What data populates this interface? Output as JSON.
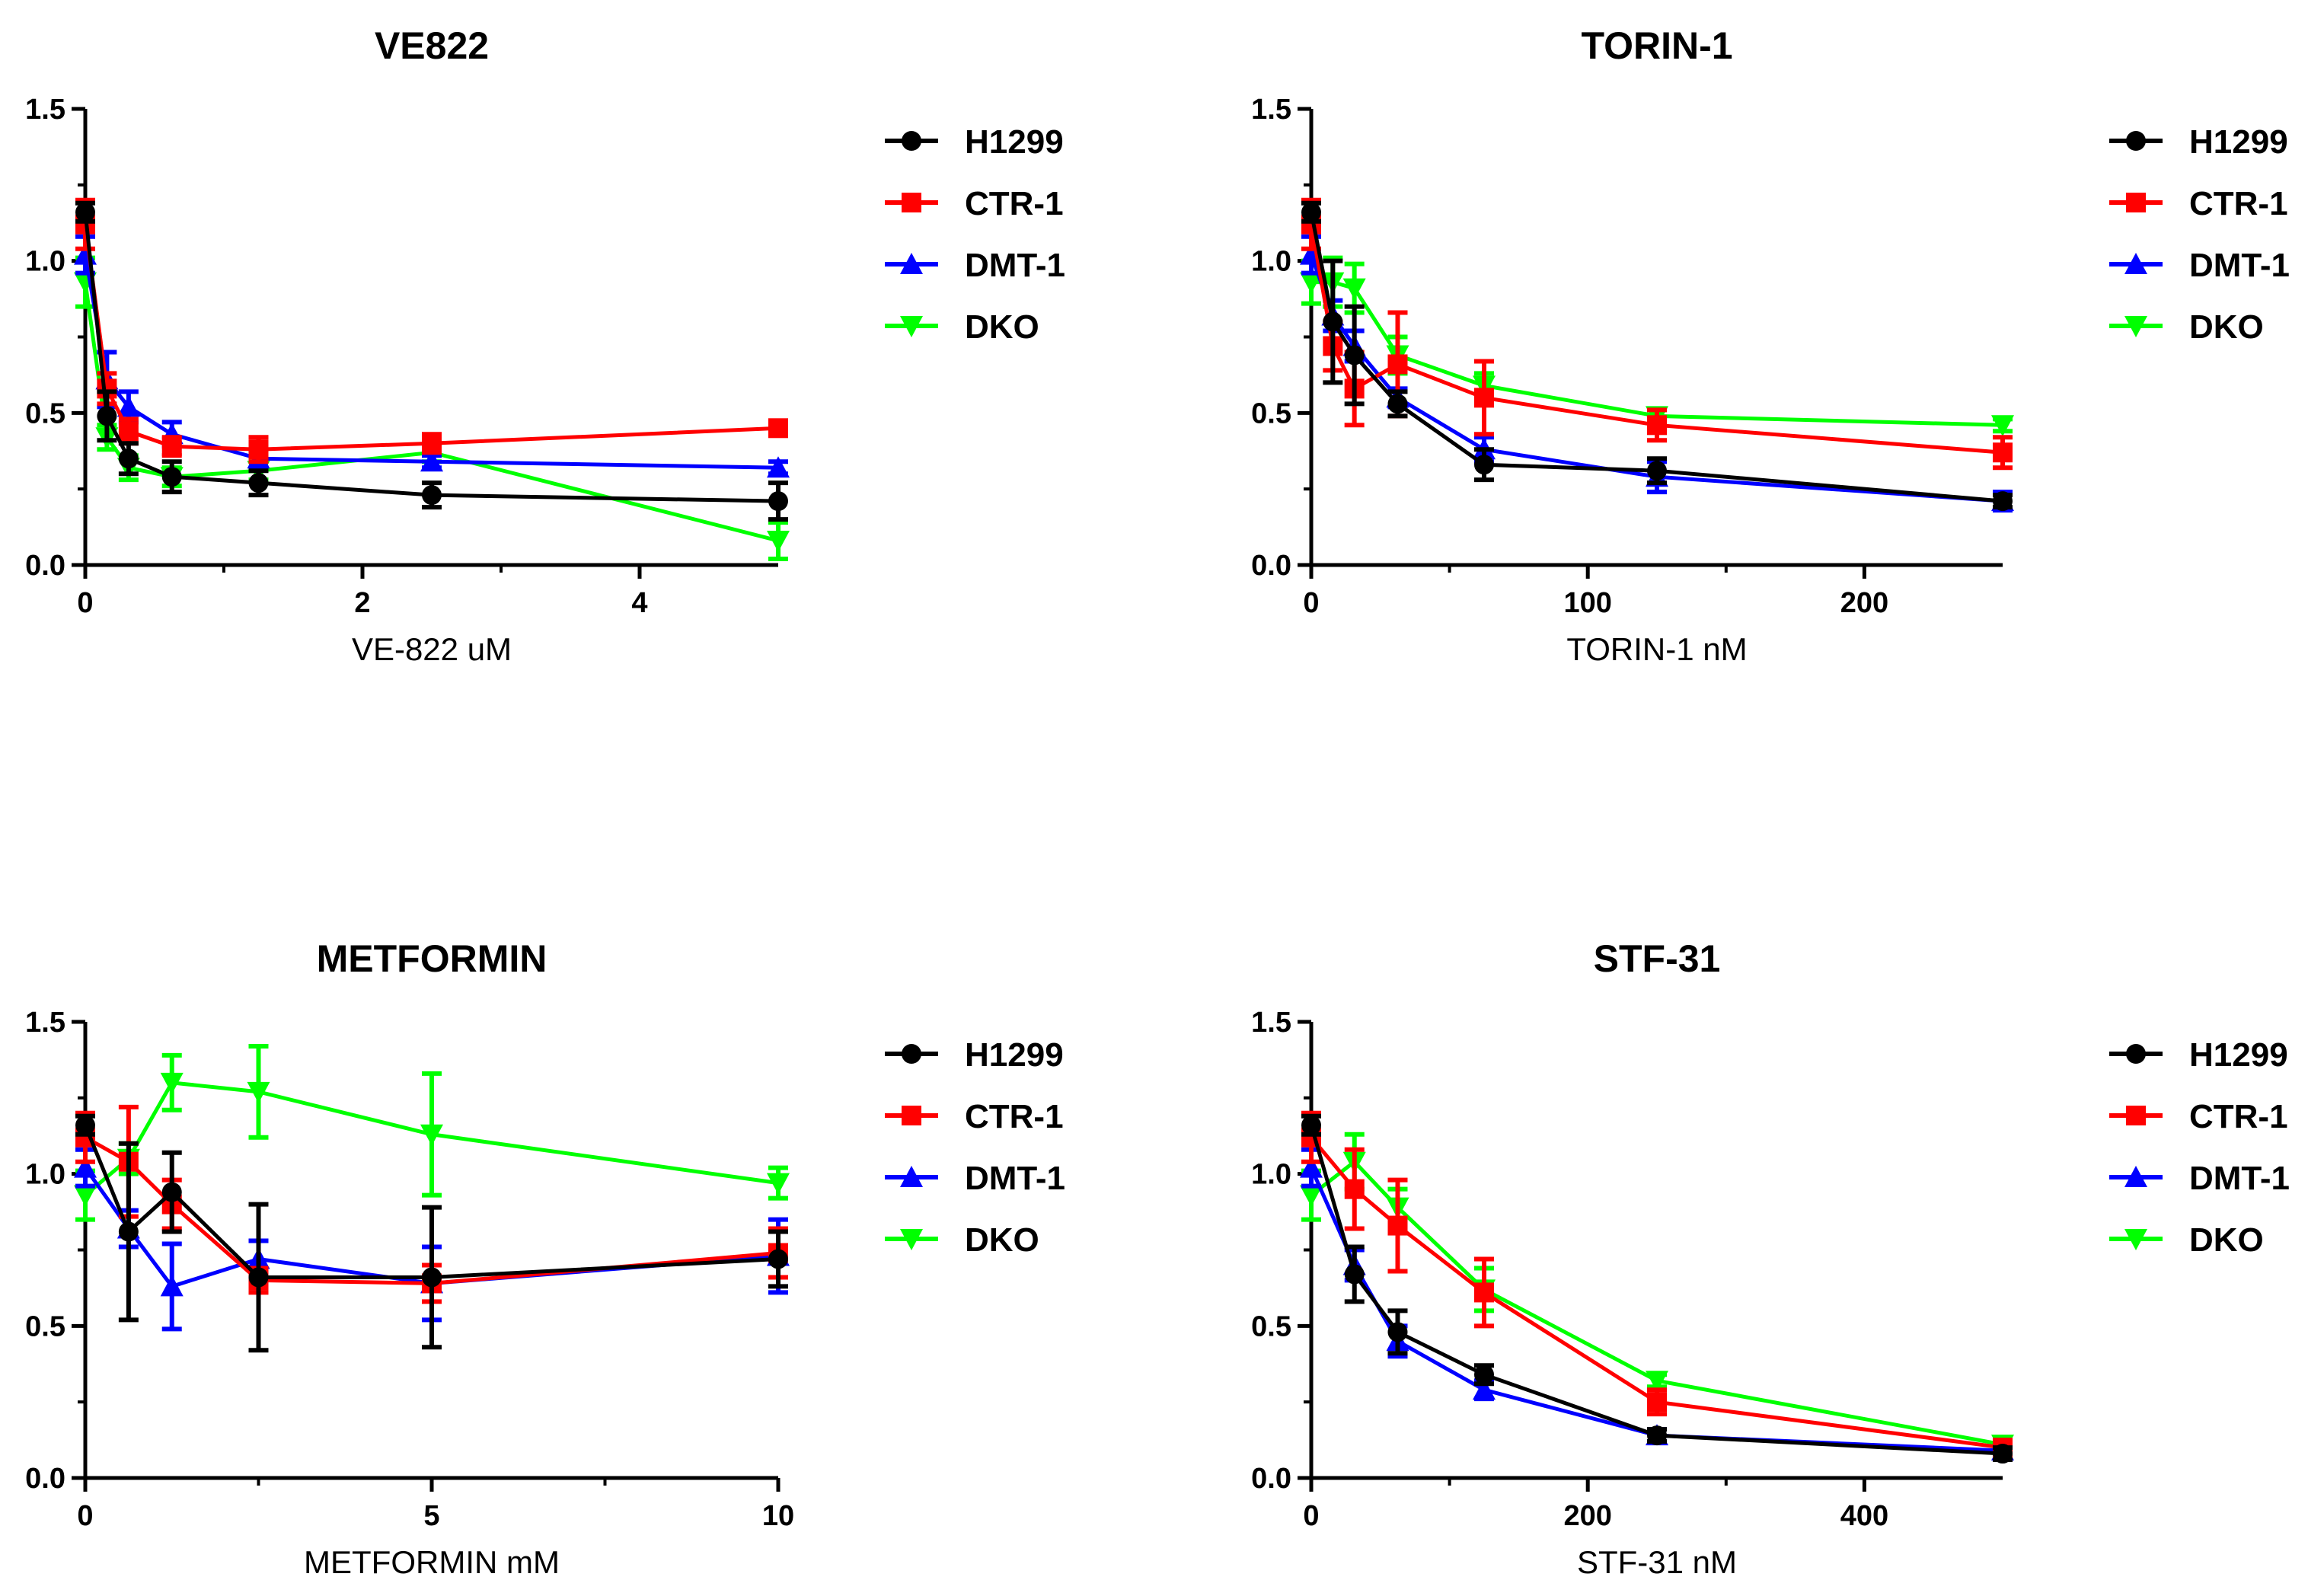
{
  "chart_data": [
    {
      "type": "line",
      "title": "VE822",
      "xlabel": "VE-822 uM",
      "ylabel": "",
      "xlim": [
        0,
        5
      ],
      "ylim": [
        0,
        1.5
      ],
      "xticks": [
        0,
        2,
        4
      ],
      "xtick_labels": [
        "0",
        "2",
        "4"
      ],
      "yticks": [
        0,
        0.5,
        1.0,
        1.5
      ],
      "ytick_labels": [
        "0.0",
        "0.5",
        "1.0",
        "1.5"
      ],
      "legend_position": "right",
      "series": [
        {
          "name": "H1299",
          "color": "#000000",
          "marker": "circle",
          "x": [
            0,
            0.156,
            0.3125,
            0.625,
            1.25,
            2.5,
            5
          ],
          "y": [
            1.16,
            0.49,
            0.35,
            0.29,
            0.27,
            0.23,
            0.21
          ],
          "err": [
            0.03,
            0.08,
            0.05,
            0.05,
            0.04,
            0.04,
            0.06
          ]
        },
        {
          "name": "CTR-1",
          "color": "#ff0000",
          "marker": "square",
          "x": [
            0,
            0.156,
            0.3125,
            0.625,
            1.25,
            2.5,
            5
          ],
          "y": [
            1.12,
            0.58,
            0.44,
            0.39,
            0.38,
            0.4,
            0.45
          ],
          "err": [
            0.08,
            0.05,
            0.04,
            0.03,
            0.04,
            0.03,
            0.02
          ]
        },
        {
          "name": "DMT-1",
          "color": "#0000ff",
          "marker": "triangle-up",
          "x": [
            0,
            0.156,
            0.3125,
            0.625,
            1.25,
            2.5,
            5
          ],
          "y": [
            1.02,
            0.61,
            0.52,
            0.43,
            0.35,
            0.34,
            0.32
          ],
          "err": [
            0.06,
            0.09,
            0.05,
            0.04,
            0.03,
            0.02,
            0.02
          ]
        },
        {
          "name": "DKO",
          "color": "#00ff00",
          "marker": "triangle-down",
          "x": [
            0,
            0.156,
            0.3125,
            0.625,
            1.25,
            2.5,
            5
          ],
          "y": [
            0.93,
            0.42,
            0.32,
            0.29,
            0.31,
            0.37,
            0.08
          ],
          "err": [
            0.08,
            0.04,
            0.04,
            0.03,
            0.03,
            0.03,
            0.06
          ]
        }
      ]
    },
    {
      "type": "line",
      "title": "TORIN-1",
      "xlabel": "TORIN-1 nM",
      "ylabel": "",
      "xlim": [
        0,
        250
      ],
      "ylim": [
        0,
        1.5
      ],
      "xticks": [
        0,
        100,
        200
      ],
      "xtick_labels": [
        "0",
        "100",
        "200"
      ],
      "yticks": [
        0,
        0.5,
        1.0,
        1.5
      ],
      "ytick_labels": [
        "0.0",
        "0.5",
        "1.0",
        "1.5"
      ],
      "legend_position": "right",
      "series": [
        {
          "name": "H1299",
          "color": "#000000",
          "marker": "circle",
          "x": [
            0,
            7.8,
            15.6,
            31.25,
            62.5,
            125,
            250
          ],
          "y": [
            1.16,
            0.8,
            0.69,
            0.53,
            0.33,
            0.31,
            0.21
          ],
          "err": [
            0.03,
            0.2,
            0.16,
            0.04,
            0.05,
            0.04,
            0.02
          ]
        },
        {
          "name": "CTR-1",
          "color": "#ff0000",
          "marker": "square",
          "x": [
            0,
            7.8,
            15.6,
            31.25,
            62.5,
            125,
            250
          ],
          "y": [
            1.12,
            0.72,
            0.58,
            0.66,
            0.55,
            0.46,
            0.37
          ],
          "err": [
            0.08,
            0.08,
            0.12,
            0.17,
            0.12,
            0.05,
            0.05
          ]
        },
        {
          "name": "DMT-1",
          "color": "#0000ff",
          "marker": "triangle-up",
          "x": [
            0,
            7.8,
            15.6,
            31.25,
            62.5,
            125,
            250
          ],
          "y": [
            1.02,
            0.82,
            0.72,
            0.55,
            0.38,
            0.29,
            0.21
          ],
          "err": [
            0.06,
            0.05,
            0.05,
            0.03,
            0.04,
            0.05,
            0.03
          ]
        },
        {
          "name": "DKO",
          "color": "#00ff00",
          "marker": "triangle-down",
          "x": [
            0,
            7.8,
            15.6,
            31.25,
            62.5,
            125,
            250
          ],
          "y": [
            0.93,
            0.93,
            0.91,
            0.69,
            0.59,
            0.49,
            0.46
          ],
          "err": [
            0.07,
            0.08,
            0.08,
            0.06,
            0.04,
            0.02,
            0.02
          ]
        }
      ]
    },
    {
      "type": "line",
      "title": "METFORMIN",
      "xlabel": "METFORMIN mM",
      "ylabel": "",
      "xlim": [
        0,
        10
      ],
      "ylim": [
        0,
        1.5
      ],
      "xticks": [
        0,
        5,
        10
      ],
      "xtick_labels": [
        "0",
        "5",
        "10"
      ],
      "yticks": [
        0,
        0.5,
        1.0,
        1.5
      ],
      "ytick_labels": [
        "0.0",
        "0.5",
        "1.0",
        "1.5"
      ],
      "legend_position": "right",
      "series": [
        {
          "name": "H1299",
          "color": "#000000",
          "marker": "circle",
          "x": [
            0,
            0.625,
            1.25,
            2.5,
            5,
            10
          ],
          "y": [
            1.16,
            0.81,
            0.94,
            0.66,
            0.66,
            0.72
          ],
          "err": [
            0.03,
            0.29,
            0.13,
            0.24,
            0.23,
            0.09
          ]
        },
        {
          "name": "CTR-1",
          "color": "#ff0000",
          "marker": "square",
          "x": [
            0,
            0.625,
            1.25,
            2.5,
            5,
            10
          ],
          "y": [
            1.12,
            1.04,
            0.9,
            0.65,
            0.64,
            0.74
          ],
          "err": [
            0.08,
            0.18,
            0.08,
            0.04,
            0.06,
            0.08
          ]
        },
        {
          "name": "DMT-1",
          "color": "#0000ff",
          "marker": "triangle-up",
          "x": [
            0,
            0.625,
            1.25,
            2.5,
            5,
            10
          ],
          "y": [
            1.02,
            0.82,
            0.63,
            0.72,
            0.64,
            0.73
          ],
          "err": [
            0.06,
            0.06,
            0.14,
            0.06,
            0.12,
            0.12
          ]
        },
        {
          "name": "DKO",
          "color": "#00ff00",
          "marker": "triangle-down",
          "x": [
            0,
            0.625,
            1.25,
            2.5,
            5,
            10
          ],
          "y": [
            0.93,
            1.05,
            1.3,
            1.27,
            1.13,
            0.97
          ],
          "err": [
            0.08,
            0.05,
            0.09,
            0.15,
            0.2,
            0.05
          ]
        }
      ]
    },
    {
      "type": "line",
      "title": "STF-31",
      "xlabel": "STF-31 nM",
      "ylabel": "",
      "xlim": [
        0,
        500
      ],
      "ylim": [
        0,
        1.5
      ],
      "xticks": [
        0,
        200,
        400
      ],
      "xtick_labels": [
        "0",
        "200",
        "400"
      ],
      "yticks": [
        0,
        0.5,
        1.0,
        1.5
      ],
      "ytick_labels": [
        "0.0",
        "0.5",
        "1.0",
        "1.5"
      ],
      "legend_position": "right",
      "series": [
        {
          "name": "H1299",
          "color": "#000000",
          "marker": "circle",
          "x": [
            0,
            31.25,
            62.5,
            125,
            250,
            500
          ],
          "y": [
            1.16,
            0.67,
            0.48,
            0.34,
            0.14,
            0.08
          ],
          "err": [
            0.03,
            0.09,
            0.07,
            0.03,
            0.02,
            0.02
          ]
        },
        {
          "name": "CTR-1",
          "color": "#ff0000",
          "marker": "square",
          "x": [
            0,
            31.25,
            62.5,
            125,
            250,
            500
          ],
          "y": [
            1.12,
            0.95,
            0.83,
            0.61,
            0.25,
            0.1
          ],
          "err": [
            0.08,
            0.13,
            0.15,
            0.11,
            0.04,
            0.02
          ]
        },
        {
          "name": "DMT-1",
          "color": "#0000ff",
          "marker": "triangle-up",
          "x": [
            0,
            31.25,
            62.5,
            125,
            250,
            500
          ],
          "y": [
            1.02,
            0.7,
            0.45,
            0.29,
            0.14,
            0.09
          ],
          "err": [
            0.06,
            0.05,
            0.05,
            0.03,
            0.02,
            0.02
          ]
        },
        {
          "name": "DKO",
          "color": "#00ff00",
          "marker": "triangle-down",
          "x": [
            0,
            31.25,
            62.5,
            125,
            250,
            500
          ],
          "y": [
            0.93,
            1.04,
            0.89,
            0.62,
            0.32,
            0.11
          ],
          "err": [
            0.08,
            0.09,
            0.06,
            0.07,
            0.02,
            0.02
          ]
        }
      ]
    }
  ]
}
